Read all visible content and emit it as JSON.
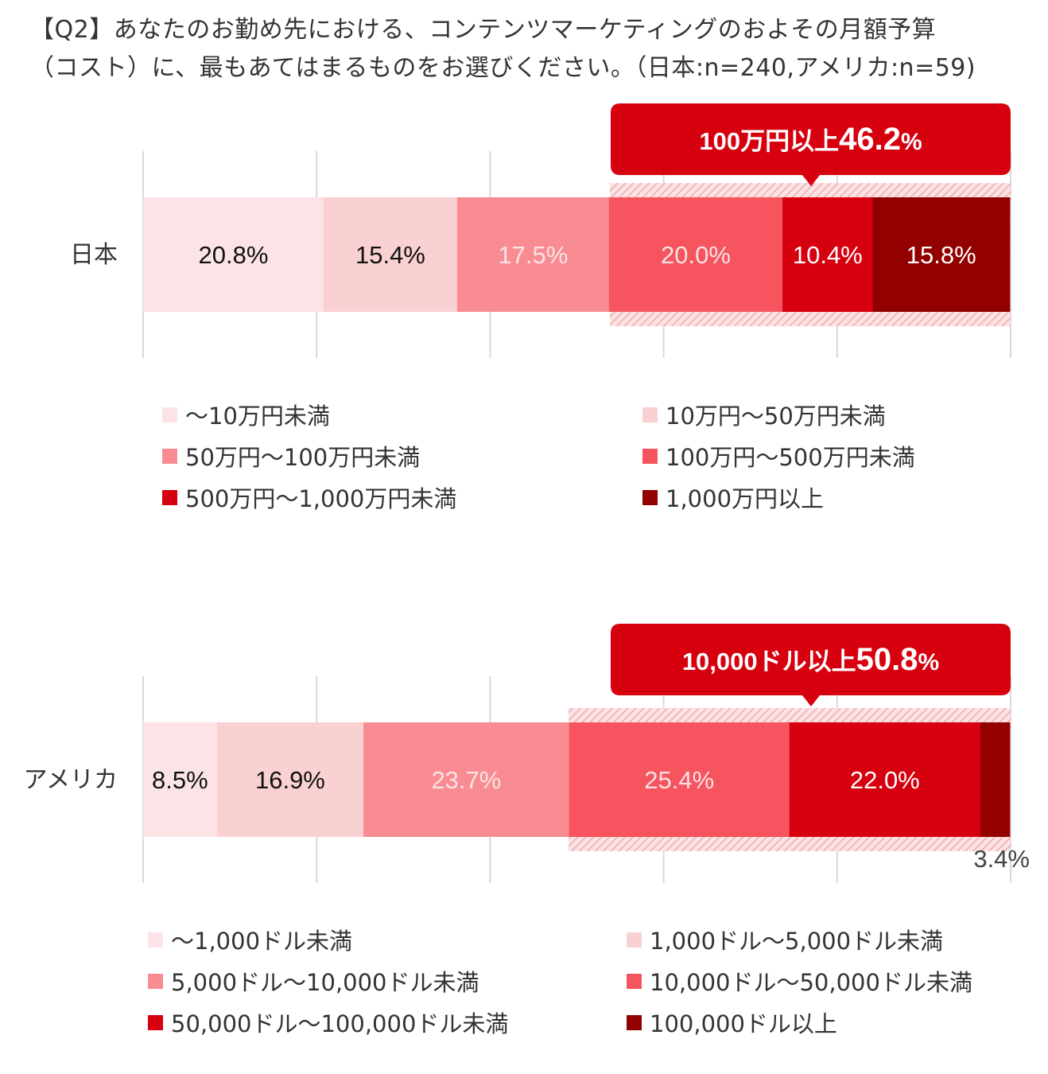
{
  "title": {
    "line1": "【Q2】あなたのお勤め先における、コンテンツマーケティングのおよその月額予算",
    "line2": "（コスト）に、最もあてはまるものをお選びください。（日本:n=240,アメリカ:n=59)"
  },
  "colors": [
    "#fce4e6",
    "#f9d1d3",
    "#f98c92",
    "#f6545f",
    "#d7000f",
    "#920000"
  ],
  "chart_data": [
    {
      "type": "bar",
      "orientation": "horizontal-stacked-100",
      "category": "日本",
      "xlim": [
        0,
        100
      ],
      "series": [
        {
          "name": "〜10万円未満",
          "value": 20.8,
          "label": "20.8%"
        },
        {
          "name": "10万円〜50万円未満",
          "value": 15.4,
          "label": "15.4%"
        },
        {
          "name": "50万円〜100万円未満",
          "value": 17.5,
          "label": "17.5%"
        },
        {
          "name": "100万円〜500万円未満",
          "value": 20.0,
          "label": "20.0%"
        },
        {
          "name": "500万円〜1,000万円未満",
          "value": 10.4,
          "label": "10.4%"
        },
        {
          "name": "1,000万円以上",
          "value": 15.8,
          "label": "15.8%"
        }
      ],
      "callout": {
        "text": "100万円以上",
        "value": "46.2",
        "unit": "%"
      }
    },
    {
      "type": "bar",
      "orientation": "horizontal-stacked-100",
      "category": "アメリカ",
      "xlim": [
        0,
        100
      ],
      "series": [
        {
          "name": "〜1,000ドル未満",
          "value": 8.5,
          "label": "8.5%"
        },
        {
          "name": "1,000ドル〜5,000ドル未満",
          "value": 16.9,
          "label": "16.9%"
        },
        {
          "name": "5,000ドル〜10,000ドル未満",
          "value": 23.7,
          "label": "23.7%"
        },
        {
          "name": "10,000ドル〜50,000ドル未満",
          "value": 25.4,
          "label": "25.4%"
        },
        {
          "name": "50,000ドル〜100,000ドル未満",
          "value": 22.0,
          "label": "22.0%"
        },
        {
          "name": "100,000ドル以上",
          "value": 3.4,
          "label": "3.4%"
        }
      ],
      "callout": {
        "text": "10,000ドル以上",
        "value": "50.8",
        "unit": "%"
      }
    }
  ]
}
